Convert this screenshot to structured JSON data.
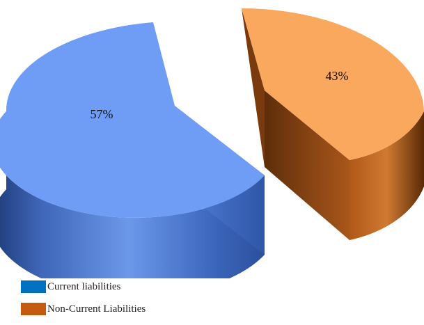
{
  "chart_data": {
    "type": "pie",
    "title": "",
    "categories": [
      "Current liabilities",
      "Non-Current Liabilities"
    ],
    "values": [
      57,
      43
    ],
    "value_labels": [
      "57%",
      "43%"
    ],
    "colors": [
      "#6f9df5",
      "#fba85f"
    ],
    "legend_colors": [
      "#0070c0",
      "#c55a11"
    ],
    "legend_position": "bottom-left",
    "style": "3d-exploded"
  }
}
